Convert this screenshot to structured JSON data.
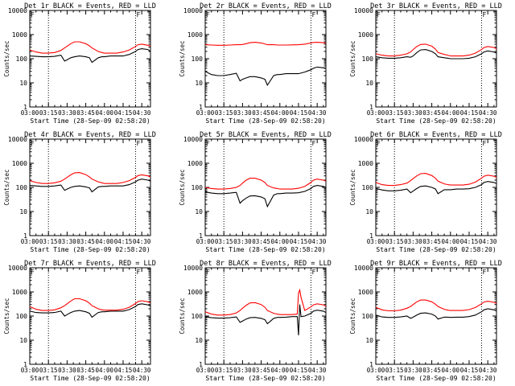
{
  "figure": {
    "x_tick_labels": [
      "03:00",
      "03:15",
      "03:30",
      "03:45",
      "04:00",
      "04:15",
      "04:30"
    ],
    "x_label": "Start Time (28-Sep-09 02:58:20)",
    "y_label": "Counts/sec",
    "y_tick_labels": [
      "1",
      "10",
      "100",
      "1000",
      "10000"
    ],
    "series_colors": {
      "events": "#000000",
      "lld": "#ff0000"
    },
    "frame_color": "#000000",
    "flag_marker": "F"
  },
  "chart_data": [
    {
      "type": "line",
      "title": "Det 1r BLACK = Events, RED = LLD",
      "xlabel": "Start Time (28-Sep-09 02:58:20)",
      "ylabel": "Counts/sec",
      "x": [
        0,
        5,
        10,
        15,
        20,
        25,
        28,
        30,
        33,
        36,
        40,
        45,
        48,
        50,
        55,
        58,
        60,
        65,
        70,
        75,
        80,
        85,
        87,
        90,
        95,
        97
      ],
      "series": [
        {
          "name": "Events",
          "values": [
            130,
            125,
            120,
            120,
            125,
            140,
            80,
            90,
            110,
            120,
            130,
            120,
            110,
            70,
            110,
            120,
            120,
            130,
            130,
            130,
            150,
            200,
            240,
            260,
            240,
            200
          ]
        },
        {
          "name": "LLD",
          "values": [
            230,
            190,
            170,
            170,
            180,
            220,
            280,
            330,
            420,
            500,
            500,
            420,
            340,
            280,
            200,
            180,
            170,
            170,
            170,
            190,
            230,
            320,
            380,
            400,
            360,
            330
          ]
        }
      ]
    },
    {
      "type": "line",
      "title": "Det 2r BLACK = Events, RED = LLD",
      "xlabel": "Start Time (28-Sep-09 02:58:20)",
      "ylabel": "Counts/sec",
      "x": [
        0,
        5,
        10,
        15,
        20,
        25,
        28,
        30,
        33,
        36,
        40,
        45,
        48,
        50,
        55,
        58,
        60,
        65,
        70,
        75,
        80,
        85,
        87,
        90,
        95,
        97
      ],
      "series": [
        {
          "name": "Events",
          "values": [
            30,
            22,
            20,
            20,
            22,
            25,
            12,
            14,
            16,
            18,
            18,
            16,
            14,
            8,
            20,
            22,
            22,
            24,
            24,
            24,
            28,
            35,
            40,
            45,
            42,
            40
          ]
        },
        {
          "name": "LLD",
          "values": [
            380,
            370,
            360,
            360,
            370,
            380,
            380,
            390,
            420,
            460,
            480,
            450,
            410,
            380,
            380,
            370,
            370,
            370,
            375,
            380,
            400,
            450,
            470,
            480,
            460,
            440
          ]
        }
      ]
    },
    {
      "type": "line",
      "title": "Det 3r BLACK = Events, RED = LLD",
      "xlabel": "Start Time (28-Sep-09 02:58:20)",
      "ylabel": "Counts/sec",
      "x": [
        0,
        5,
        10,
        15,
        20,
        25,
        28,
        30,
        33,
        36,
        40,
        45,
        48,
        50,
        55,
        58,
        60,
        65,
        70,
        75,
        80,
        85,
        87,
        90,
        95,
        97
      ],
      "series": [
        {
          "name": "Events",
          "values": [
            120,
            110,
            105,
            105,
            110,
            120,
            115,
            130,
            180,
            230,
            240,
            200,
            160,
            120,
            110,
            105,
            100,
            100,
            100,
            105,
            120,
            160,
            190,
            210,
            190,
            170
          ]
        },
        {
          "name": "LLD",
          "values": [
            160,
            140,
            130,
            130,
            140,
            160,
            190,
            240,
            320,
            390,
            400,
            330,
            250,
            180,
            150,
            140,
            130,
            130,
            130,
            140,
            170,
            240,
            290,
            320,
            290,
            260
          ]
        }
      ]
    },
    {
      "type": "line",
      "title": "Det 4r BLACK = Events, RED = LLD",
      "xlabel": "Start Time (28-Sep-09 02:58:20)",
      "ylabel": "Counts/sec",
      "x": [
        0,
        5,
        10,
        15,
        20,
        25,
        28,
        30,
        33,
        36,
        40,
        45,
        48,
        50,
        55,
        58,
        60,
        65,
        70,
        75,
        80,
        85,
        87,
        90,
        95,
        97
      ],
      "series": [
        {
          "name": "Events",
          "values": [
            120,
            115,
            110,
            110,
            115,
            125,
            75,
            85,
            100,
            110,
            115,
            105,
            95,
            65,
            105,
            110,
            110,
            115,
            115,
            115,
            130,
            170,
            200,
            220,
            200,
            180
          ]
        },
        {
          "name": "LLD",
          "values": [
            190,
            160,
            145,
            145,
            155,
            180,
            220,
            260,
            330,
            400,
            410,
            340,
            270,
            220,
            170,
            155,
            145,
            145,
            145,
            160,
            190,
            260,
            310,
            330,
            300,
            270
          ]
        }
      ]
    },
    {
      "type": "line",
      "title": "Det 5r BLACK = Events, RED = LLD",
      "xlabel": "Start Time (28-Sep-09 02:58:20)",
      "ylabel": "Counts/sec",
      "x": [
        0,
        5,
        10,
        15,
        20,
        25,
        28,
        30,
        33,
        36,
        40,
        45,
        48,
        50,
        55,
        58,
        60,
        65,
        70,
        75,
        80,
        85,
        87,
        90,
        95,
        97
      ],
      "series": [
        {
          "name": "Events",
          "values": [
            65,
            58,
            55,
            55,
            58,
            62,
            22,
            28,
            36,
            44,
            45,
            40,
            34,
            16,
            48,
            55,
            55,
            58,
            58,
            60,
            68,
            90,
            110,
            120,
            110,
            100
          ]
        },
        {
          "name": "LLD",
          "values": [
            100,
            90,
            85,
            85,
            90,
            100,
            120,
            150,
            200,
            240,
            240,
            200,
            160,
            120,
            95,
            90,
            85,
            85,
            85,
            92,
            110,
            160,
            200,
            220,
            200,
            180
          ]
        }
      ]
    },
    {
      "type": "line",
      "title": "Det 6r BLACK = Events, RED = LLD",
      "xlabel": "Start Time (28-Sep-09 02:58:20)",
      "ylabel": "Counts/sec",
      "x": [
        0,
        5,
        10,
        15,
        20,
        25,
        28,
        30,
        33,
        36,
        40,
        45,
        48,
        50,
        55,
        58,
        60,
        65,
        70,
        75,
        80,
        85,
        87,
        90,
        95,
        97
      ],
      "series": [
        {
          "name": "Events",
          "values": [
            90,
            78,
            72,
            72,
            76,
            85,
            60,
            70,
            90,
            110,
            115,
            100,
            85,
            55,
            80,
            80,
            80,
            85,
            85,
            88,
            100,
            130,
            160,
            175,
            160,
            145
          ]
        },
        {
          "name": "LLD",
          "values": [
            160,
            130,
            120,
            120,
            130,
            150,
            190,
            230,
            300,
            370,
            380,
            310,
            240,
            180,
            140,
            130,
            125,
            125,
            125,
            135,
            165,
            240,
            290,
            320,
            290,
            260
          ]
        }
      ]
    },
    {
      "type": "line",
      "title": "Det 7r BLACK = Events, RED = LLD",
      "xlabel": "Start Time (28-Sep-09 02:58:20)",
      "ylabel": "Counts/sec",
      "x": [
        0,
        5,
        10,
        15,
        20,
        25,
        28,
        30,
        33,
        36,
        40,
        45,
        48,
        50,
        55,
        58,
        60,
        65,
        70,
        75,
        80,
        85,
        87,
        90,
        95,
        97
      ],
      "series": [
        {
          "name": "Events",
          "values": [
            160,
            140,
            135,
            135,
            140,
            160,
            100,
            115,
            140,
            160,
            170,
            150,
            130,
            90,
            140,
            150,
            150,
            160,
            160,
            160,
            185,
            250,
            300,
            320,
            290,
            260
          ]
        },
        {
          "name": "LLD",
          "values": [
            250,
            190,
            170,
            170,
            180,
            220,
            270,
            320,
            420,
            520,
            520,
            430,
            340,
            270,
            200,
            180,
            175,
            175,
            175,
            190,
            230,
            330,
            400,
            430,
            390,
            350
          ]
        }
      ]
    },
    {
      "type": "line",
      "title": "Det 8r BLACK = Events, RED = LLD",
      "xlabel": "Start Time (28-Sep-09 02:58:20)",
      "ylabel": "Counts/sec",
      "x": [
        0,
        5,
        10,
        15,
        20,
        25,
        28,
        30,
        33,
        36,
        40,
        45,
        48,
        50,
        55,
        58,
        60,
        65,
        70,
        74,
        75,
        76,
        77,
        80,
        85,
        87,
        90,
        95,
        97
      ],
      "series": [
        {
          "name": "Events",
          "values": [
            95,
            85,
            82,
            82,
            85,
            92,
            55,
            62,
            75,
            85,
            88,
            80,
            70,
            48,
            80,
            88,
            88,
            90,
            95,
            95,
            16,
            300,
            95,
            100,
            130,
            160,
            175,
            160,
            140
          ]
        },
        {
          "name": "LLD",
          "values": [
            150,
            120,
            110,
            110,
            115,
            135,
            170,
            210,
            280,
            350,
            360,
            300,
            230,
            170,
            130,
            120,
            115,
            115,
            115,
            120,
            900,
            1200,
            600,
            170,
            240,
            290,
            320,
            290,
            250
          ]
        }
      ]
    },
    {
      "type": "line",
      "title": "Det 9r BLACK = Events, RED = LLD",
      "xlabel": "Start Time (28-Sep-09 02:58:20)",
      "ylabel": "Counts/sec",
      "x": [
        0,
        5,
        10,
        15,
        20,
        25,
        28,
        30,
        33,
        36,
        40,
        45,
        48,
        50,
        55,
        58,
        60,
        65,
        70,
        75,
        80,
        85,
        87,
        90,
        95,
        97
      ],
      "series": [
        {
          "name": "Events",
          "values": [
            110,
            92,
            88,
            88,
            92,
            100,
            80,
            90,
            110,
            130,
            135,
            120,
            100,
            75,
            90,
            90,
            88,
            90,
            90,
            95,
            110,
            150,
            180,
            200,
            180,
            160
          ]
        },
        {
          "name": "LLD",
          "values": [
            230,
            180,
            165,
            165,
            175,
            210,
            250,
            300,
            390,
            460,
            460,
            390,
            310,
            250,
            190,
            175,
            170,
            170,
            170,
            185,
            225,
            320,
            380,
            410,
            370,
            330
          ]
        }
      ]
    }
  ]
}
